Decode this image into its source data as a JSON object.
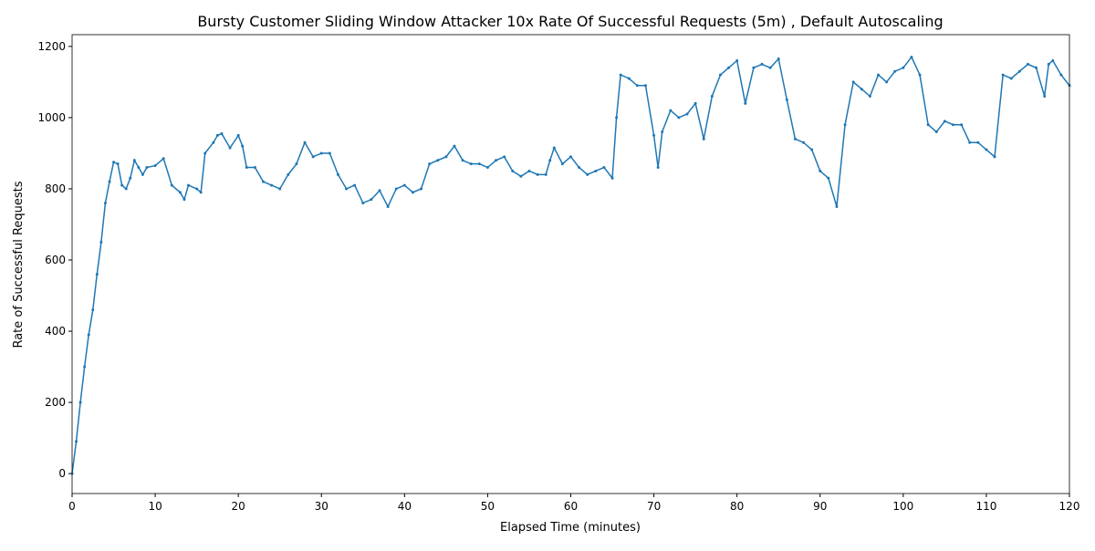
{
  "chart_data": {
    "type": "line",
    "title": "Bursty Customer Sliding Window Attacker 10x Rate Of Successful Requests (5m) , Default Autoscaling",
    "x_label": "Elapsed Time (minutes)",
    "y_label": "Rate of Successful Requests",
    "xlim": [
      0,
      120
    ],
    "ylim": [
      -56,
      1233
    ],
    "xticks": [
      0,
      10,
      20,
      30,
      40,
      50,
      60,
      70,
      80,
      90,
      100,
      110,
      120
    ],
    "yticks": [
      0,
      200,
      400,
      600,
      800,
      1000,
      1200
    ],
    "series": [
      {
        "color": "#1f77b4",
        "x": [
          0,
          0.5,
          1,
          1.5,
          2,
          2.5,
          3,
          3.5,
          4,
          4.5,
          5,
          5.5,
          6,
          6.5,
          7,
          7.5,
          8,
          8.5,
          9,
          10,
          11,
          12,
          13,
          13.5,
          14,
          15,
          15.5,
          16,
          17,
          17.5,
          18,
          19,
          20,
          20.5,
          21,
          22,
          23,
          24,
          25,
          26,
          27,
          28,
          29,
          30,
          31,
          32,
          33,
          34,
          35,
          36,
          37,
          38,
          39,
          40,
          41,
          42,
          43,
          44,
          45,
          46,
          47,
          48,
          49,
          50,
          51,
          52,
          53,
          54,
          55,
          56,
          57,
          57.5,
          58,
          59,
          60,
          61,
          62,
          63,
          64,
          65,
          65.5,
          66,
          67,
          68,
          69,
          70,
          70.5,
          71,
          72,
          73,
          74,
          75,
          76,
          77,
          78,
          79,
          80,
          81,
          82,
          83,
          84,
          85,
          86,
          87,
          88,
          89,
          90,
          91,
          92,
          93,
          94,
          95,
          96,
          97,
          98,
          99,
          100,
          101,
          102,
          103,
          104,
          105,
          106,
          107,
          108,
          109,
          110,
          111,
          112,
          113,
          114,
          115,
          116,
          117,
          117.5,
          118,
          119,
          120
        ],
        "values": [
          0,
          90,
          200,
          300,
          390,
          460,
          560,
          650,
          760,
          820,
          875,
          870,
          810,
          800,
          830,
          880,
          860,
          840,
          860,
          865,
          885,
          810,
          790,
          770,
          810,
          800,
          790,
          900,
          930,
          950,
          955,
          915,
          950,
          920,
          860,
          860,
          820,
          810,
          800,
          840,
          870,
          930,
          890,
          900,
          900,
          840,
          800,
          810,
          760,
          770,
          795,
          750,
          800,
          810,
          790,
          800,
          870,
          880,
          890,
          920,
          880,
          870,
          870,
          860,
          880,
          890,
          850,
          835,
          850,
          840,
          840,
          880,
          915,
          870,
          890,
          860,
          840,
          850,
          860,
          830,
          1000,
          1120,
          1110,
          1090,
          1090,
          950,
          860,
          960,
          1020,
          1000,
          1010,
          1040,
          940,
          1060,
          1120,
          1140,
          1160,
          1040,
          1140,
          1150,
          1140,
          1165,
          1050,
          940,
          930,
          910,
          850,
          830,
          750,
          980,
          1100,
          1080,
          1060,
          1120,
          1100,
          1130,
          1140,
          1170,
          1120,
          980,
          960,
          990,
          980,
          980,
          930,
          930,
          910,
          890,
          1120,
          1110,
          1130,
          1150,
          1140,
          1060,
          1150,
          1160,
          1120,
          1090
        ]
      }
    ]
  }
}
